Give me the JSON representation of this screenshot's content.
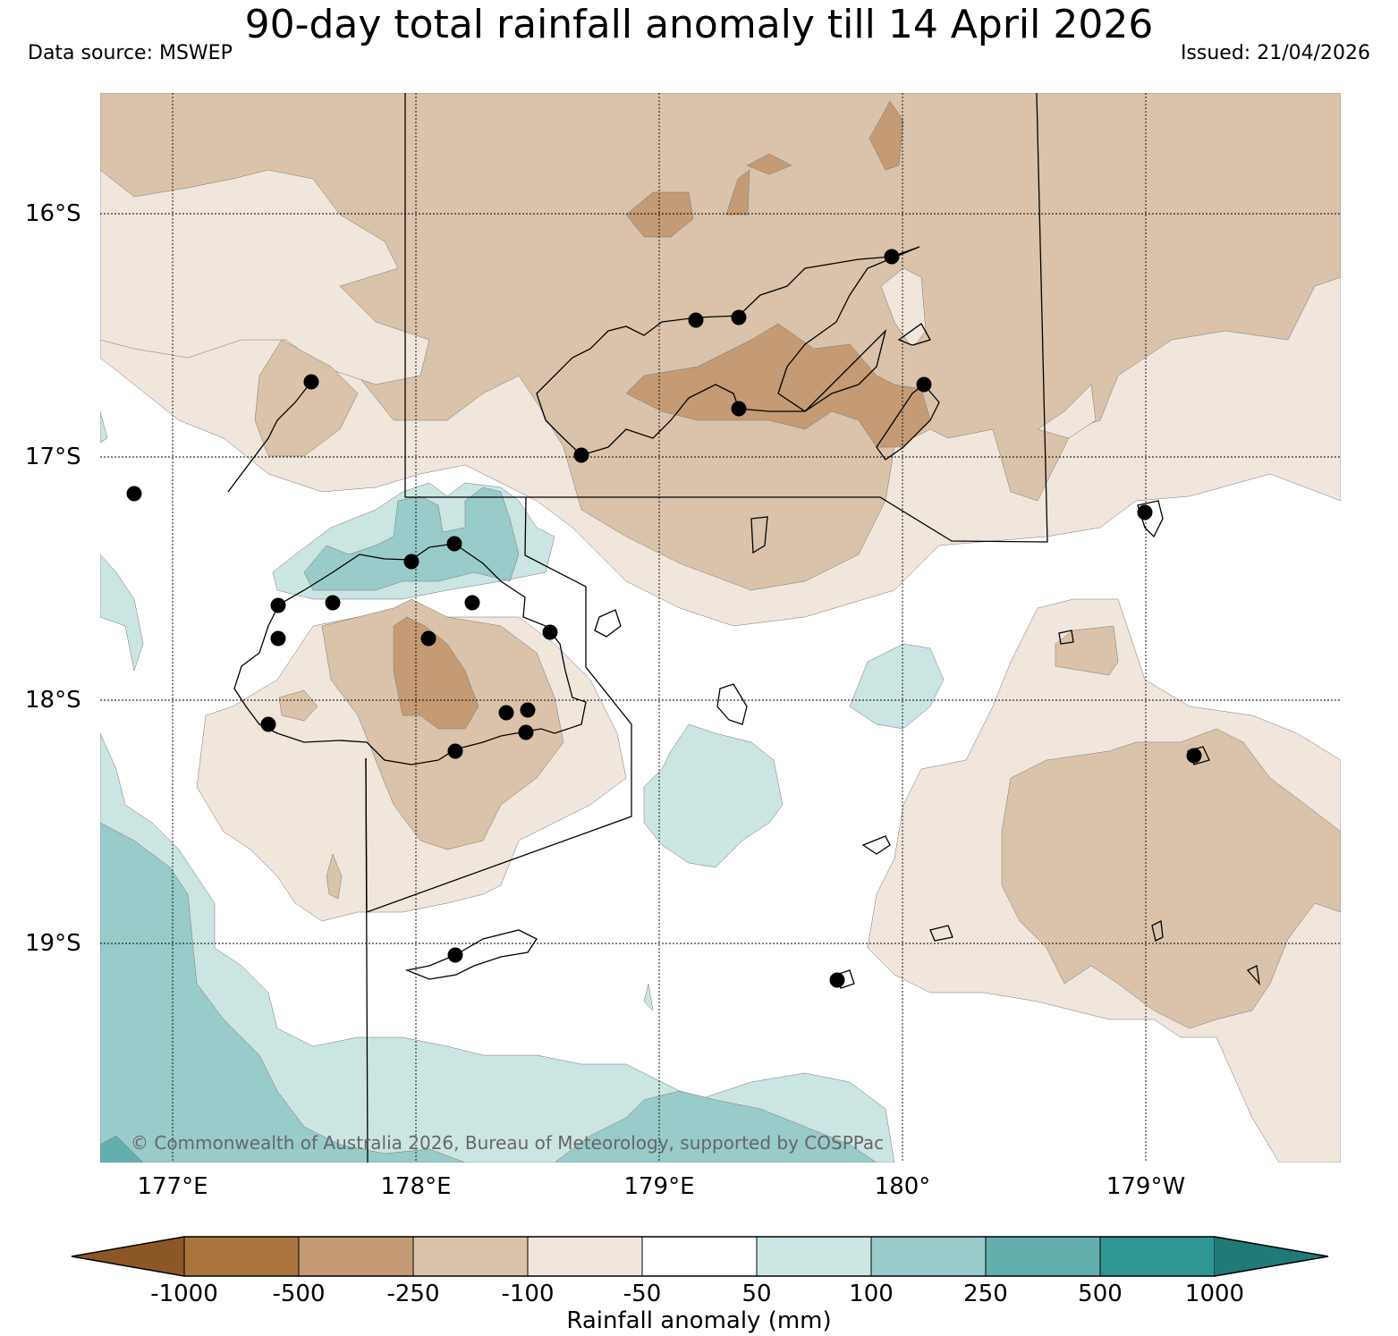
{
  "title": "90-day total rainfall anomaly till 14 April 2026",
  "data_source": "Data source: MSWEP",
  "issued": "Issued: 21/04/2026",
  "copyright": "© Commonwealth of Australia 2026, Bureau of Meteorology, supported by COSPPac",
  "lat_labels": [
    "16°S",
    "17°S",
    "18°S",
    "19°S"
  ],
  "lon_labels": [
    "177°E",
    "178°E",
    "179°E",
    "180°",
    "179°W"
  ],
  "colorbar": {
    "title": "Rainfall anomaly (mm)",
    "tick_labels": [
      "-1000",
      "-500",
      "-250",
      "-100",
      "-50",
      "50",
      "100",
      "250",
      "500",
      "1000"
    ],
    "colors": [
      "#8c5726",
      "#a9743c",
      "#c49b74",
      "#dac3aa",
      "#f0e6dc",
      "#ffffff",
      "#cbe5e3",
      "#98cbca",
      "#62afae",
      "#2e9693",
      "#217a76"
    ]
  },
  "legend_stations": "station-marker"
}
